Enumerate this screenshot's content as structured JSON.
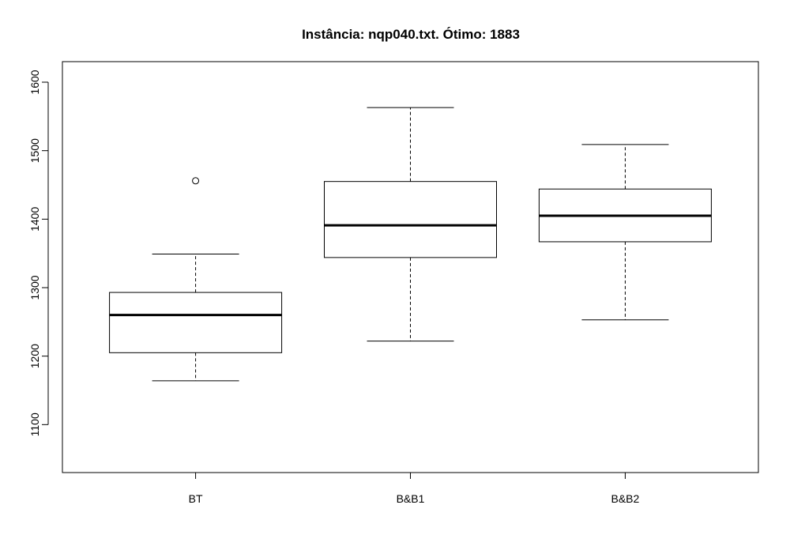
{
  "chart_data": {
    "type": "boxplot",
    "title": "Instância: nqp040.txt. Ótimo: 1883",
    "xlabel": "",
    "ylabel": "",
    "ylim": [
      1030,
      1630
    ],
    "yticks": [
      1100,
      1200,
      1300,
      1400,
      1500,
      1600
    ],
    "grid": false,
    "categories": [
      "BT",
      "B&B1",
      "B&B2"
    ],
    "boxes": [
      {
        "label": "BT",
        "whisker_low": 1164,
        "q1": 1205,
        "median": 1260,
        "q3": 1293,
        "whisker_high": 1349,
        "outliers": [
          1456
        ]
      },
      {
        "label": "B&B1",
        "whisker_low": 1222,
        "q1": 1344,
        "median": 1391,
        "q3": 1455,
        "whisker_high": 1563,
        "outliers": []
      },
      {
        "label": "B&B2",
        "whisker_low": 1253,
        "q1": 1367,
        "median": 1405,
        "q3": 1444,
        "whisker_high": 1509,
        "outliers": []
      }
    ]
  }
}
